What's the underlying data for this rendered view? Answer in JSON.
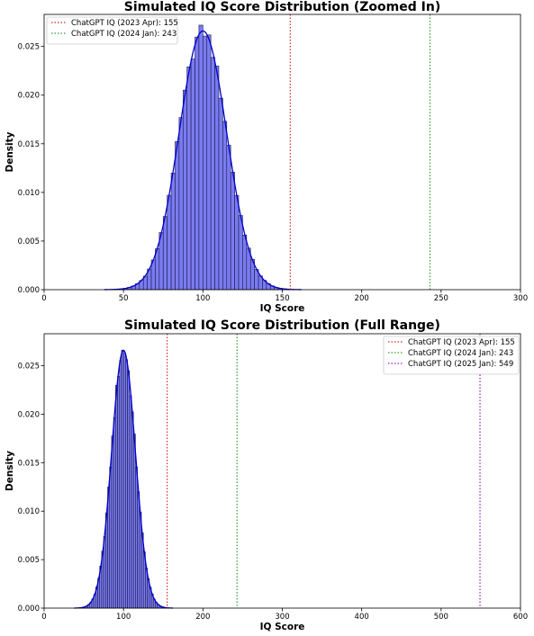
{
  "chart_data": [
    {
      "type": "histogram",
      "title": "Simulated IQ Score Distribution (Zoomed In)",
      "xlabel": "IQ Score",
      "ylabel": "Density",
      "xlim": [
        0,
        300
      ],
      "ylim": [
        0,
        0.0283
      ],
      "xticks": [
        "0",
        "50",
        "100",
        "150",
        "200",
        "250",
        "300"
      ],
      "yticks": [
        "0.000",
        "0.005",
        "0.010",
        "0.015",
        "0.020",
        "0.025"
      ],
      "bar_color": "#7b7bf0",
      "curve_color": "#0000cc",
      "distribution": {
        "mean": 100,
        "sd": 15,
        "bin_width": 2.5
      },
      "legend_position": "upper left",
      "reference_lines": [
        {
          "label": "ChatGPT IQ (2023 Apr): 155",
          "x": 155,
          "color": "#d62728"
        },
        {
          "label": "ChatGPT IQ (2024 Jan): 243",
          "x": 243,
          "color": "#2ca02c"
        }
      ]
    },
    {
      "type": "histogram",
      "title": "Simulated IQ Score Distribution (Full Range)",
      "xlabel": "IQ Score",
      "ylabel": "Density",
      "xlim": [
        0,
        600
      ],
      "ylim": [
        0,
        0.0283
      ],
      "xticks": [
        "0",
        "100",
        "200",
        "300",
        "400",
        "500",
        "600"
      ],
      "yticks": [
        "0.000",
        "0.005",
        "0.010",
        "0.015",
        "0.020",
        "0.025"
      ],
      "bar_color": "#7b7bf0",
      "curve_color": "#0000cc",
      "distribution": {
        "mean": 100,
        "sd": 15,
        "bin_width": 2.5
      },
      "legend_position": "upper right",
      "reference_lines": [
        {
          "label": "ChatGPT IQ (2023 Apr): 155",
          "x": 155,
          "color": "#d62728"
        },
        {
          "label": "ChatGPT IQ (2024 Jan): 243",
          "x": 243,
          "color": "#2ca02c"
        },
        {
          "label": "ChatGPT IQ (2025 Jan): 549",
          "x": 549,
          "color": "#9b1ec8"
        }
      ]
    }
  ]
}
